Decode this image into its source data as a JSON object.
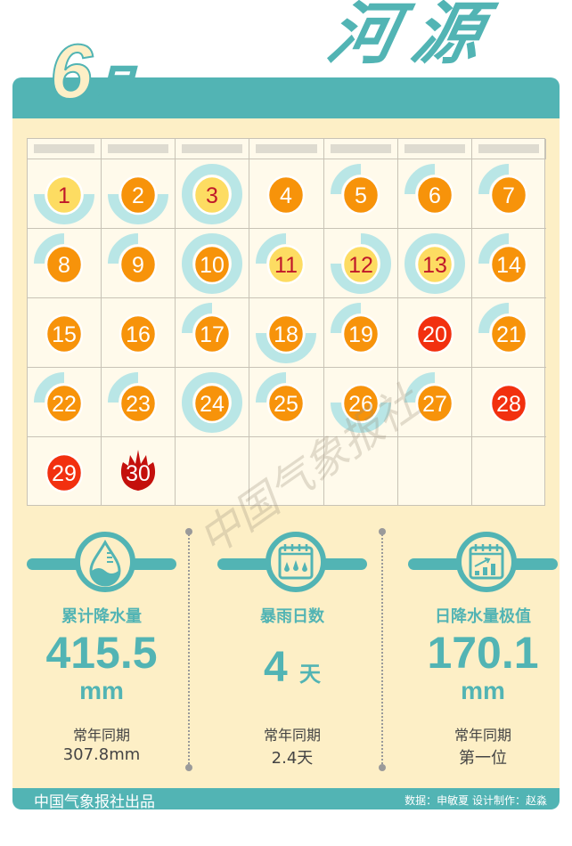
{
  "header": {
    "month_number": "6",
    "month_unit": "月",
    "city": "河源"
  },
  "colors": {
    "teal": "#52b4b4",
    "cream": "#fdefc6",
    "ring": "#b9e6e6",
    "yellow": "#fddc62",
    "orange": "#f7930a",
    "red": "#f2300f",
    "dark_red": "#c4100c",
    "yellow_text": "#c0182a"
  },
  "calendar": {
    "weekday_headers": [
      "",
      "",
      "",
      "",
      "",
      "",
      ""
    ],
    "days": [
      {
        "day": "1",
        "color": "yellow",
        "ring_quarters": [
          1,
          2
        ]
      },
      {
        "day": "2",
        "color": "orange",
        "ring_quarters": [
          1,
          2
        ]
      },
      {
        "day": "3",
        "color": "yellow",
        "ring_quarters": [
          0,
          1,
          2,
          3
        ]
      },
      {
        "day": "4",
        "color": "orange",
        "ring_quarters": []
      },
      {
        "day": "5",
        "color": "orange",
        "ring_quarters": [
          3
        ]
      },
      {
        "day": "6",
        "color": "orange",
        "ring_quarters": [
          3
        ]
      },
      {
        "day": "7",
        "color": "orange",
        "ring_quarters": [
          3
        ]
      },
      {
        "day": "8",
        "color": "orange",
        "ring_quarters": [
          3
        ]
      },
      {
        "day": "9",
        "color": "orange",
        "ring_quarters": [
          3
        ]
      },
      {
        "day": "10",
        "color": "orange",
        "ring_quarters": [
          0,
          1,
          2,
          3
        ]
      },
      {
        "day": "11",
        "color": "yellow",
        "ring_quarters": [
          3
        ]
      },
      {
        "day": "12",
        "color": "yellow",
        "ring_quarters": [
          0,
          1,
          2
        ]
      },
      {
        "day": "13",
        "color": "yellow",
        "ring_quarters": [
          0,
          1,
          2,
          3
        ]
      },
      {
        "day": "14",
        "color": "orange",
        "ring_quarters": [
          3
        ]
      },
      {
        "day": "15",
        "color": "orange",
        "ring_quarters": []
      },
      {
        "day": "16",
        "color": "orange",
        "ring_quarters": []
      },
      {
        "day": "17",
        "color": "orange",
        "ring_quarters": [
          3
        ]
      },
      {
        "day": "18",
        "color": "orange",
        "ring_quarters": [
          1,
          2
        ]
      },
      {
        "day": "19",
        "color": "orange",
        "ring_quarters": [
          3
        ]
      },
      {
        "day": "20",
        "color": "red",
        "ring_quarters": []
      },
      {
        "day": "21",
        "color": "orange",
        "ring_quarters": [
          3
        ]
      },
      {
        "day": "22",
        "color": "orange",
        "ring_quarters": [
          3
        ]
      },
      {
        "day": "23",
        "color": "orange",
        "ring_quarters": [
          3
        ]
      },
      {
        "day": "24",
        "color": "orange",
        "ring_quarters": [
          0,
          1,
          2,
          3
        ]
      },
      {
        "day": "25",
        "color": "orange",
        "ring_quarters": [
          3
        ]
      },
      {
        "day": "26",
        "color": "orange",
        "ring_quarters": [
          1,
          2
        ]
      },
      {
        "day": "27",
        "color": "orange",
        "ring_quarters": [
          3
        ]
      },
      {
        "day": "28",
        "color": "red",
        "ring_quarters": []
      },
      {
        "day": "29",
        "color": "red",
        "ring_quarters": []
      },
      {
        "day": "30",
        "color": "flame",
        "ring_quarters": []
      }
    ]
  },
  "stats": [
    {
      "icon": "water-drop-gauge-icon",
      "title": "累计降水量",
      "value": "415.5",
      "unit": "mm",
      "compare_label": "常年同期",
      "compare_value": "307.8mm"
    },
    {
      "icon": "calendar-rain-icon",
      "title": "暴雨日数",
      "value": "4",
      "unit": "天",
      "compare_label": "常年同期",
      "compare_value": "2.4天"
    },
    {
      "icon": "calendar-chart-icon",
      "title": "日降水量极值",
      "value": "170.1",
      "unit": "mm",
      "compare_label": "常年同期",
      "compare_value": "第一位"
    }
  ],
  "watermark": "中国气象报社",
  "footer": {
    "producer": "中国气象报社出品",
    "credits": "数据：申敏夏   设计制作：赵淼"
  }
}
